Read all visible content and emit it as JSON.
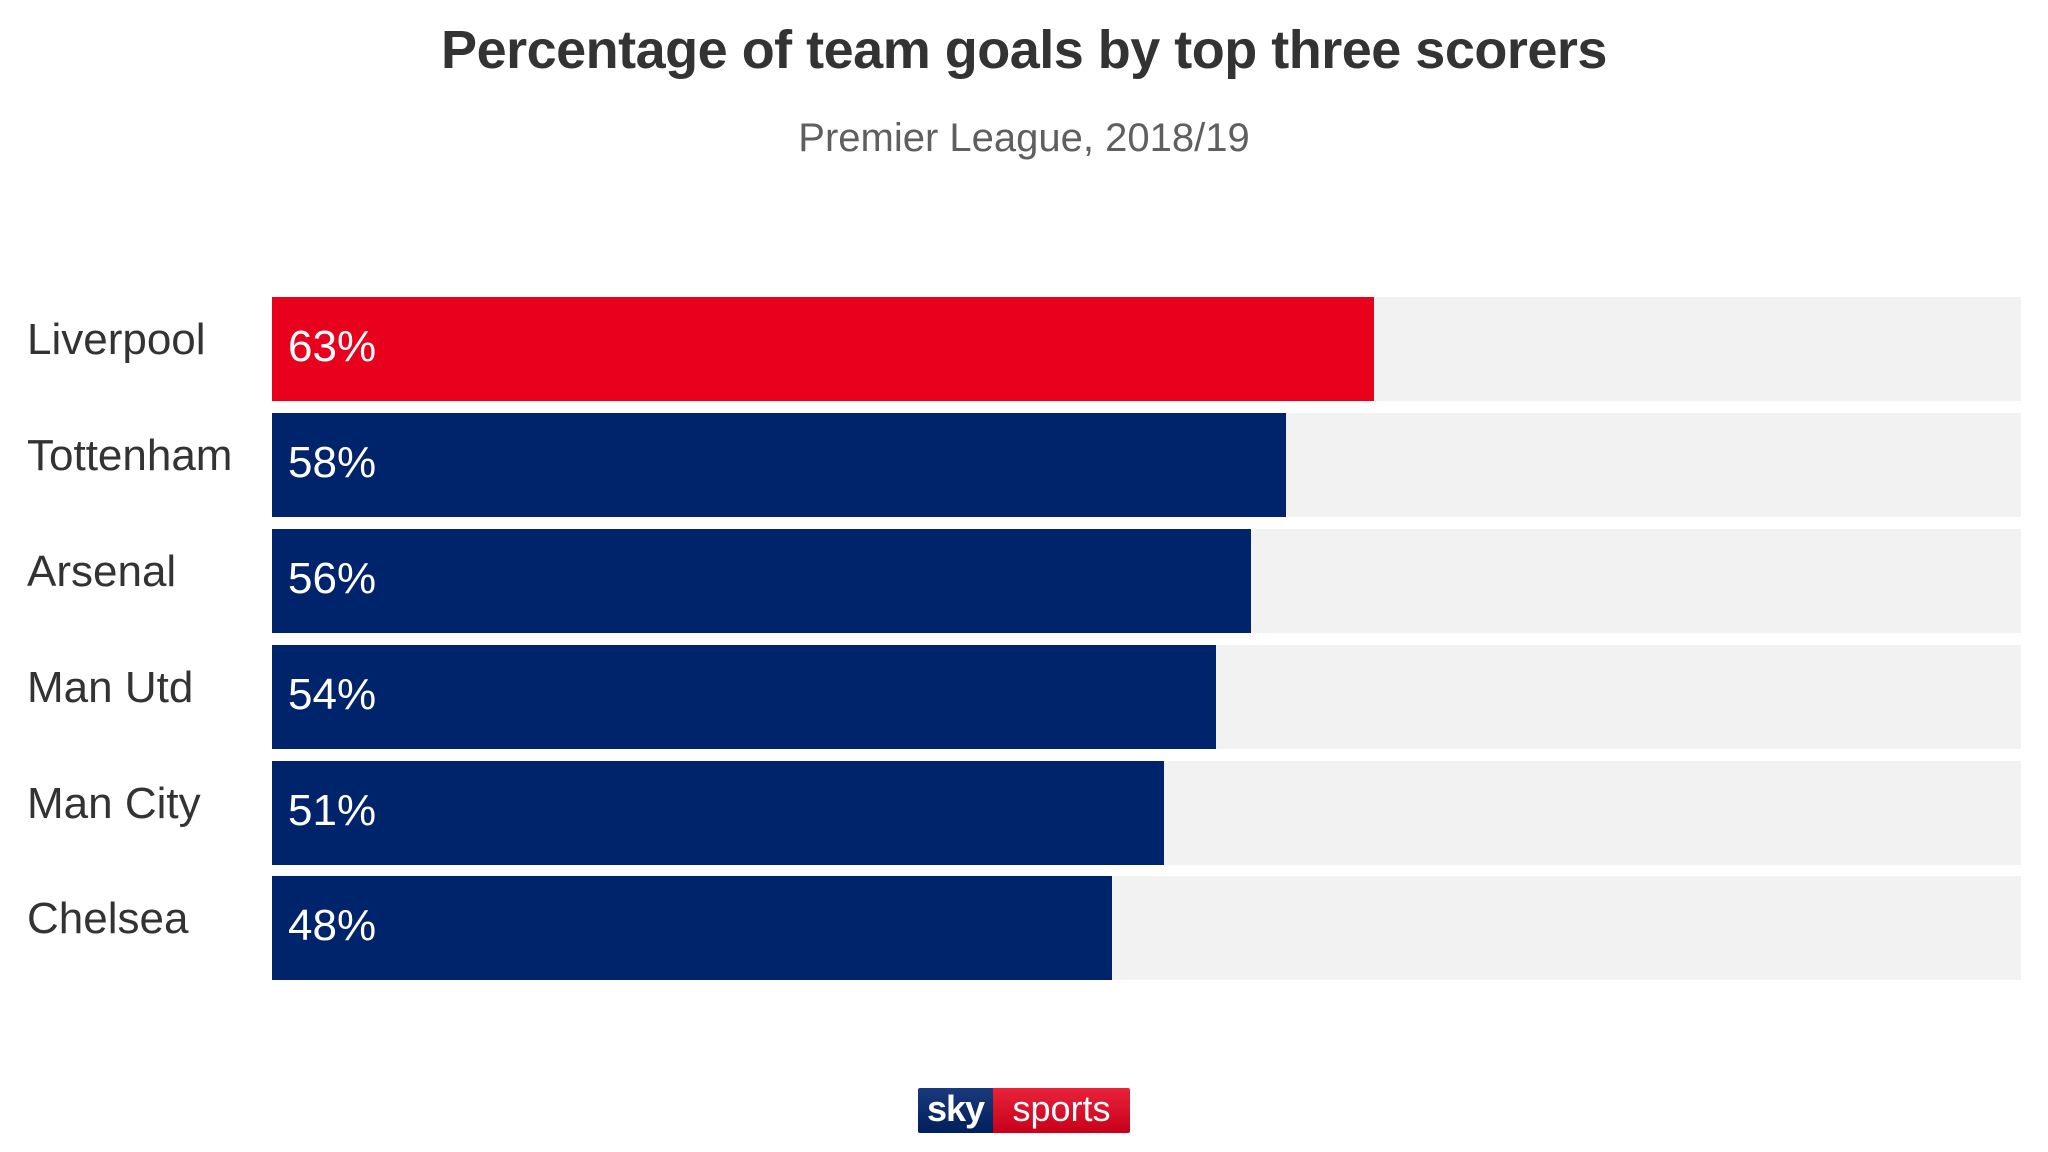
{
  "header": {
    "title": "Percentage of team goals by top three scorers",
    "subtitle": "Premier League, 2018/19"
  },
  "colors": {
    "highlight": "#e8001c",
    "bar": "#00246b",
    "track": "#f2f2f2",
    "text": "#333333",
    "subtitle": "#5f5f5f"
  },
  "rows": [
    {
      "team": "Liverpool",
      "value": 63,
      "label": "63%",
      "highlight": true
    },
    {
      "team": "Tottenham",
      "value": 58,
      "label": "58%",
      "highlight": false
    },
    {
      "team": "Arsenal",
      "value": 56,
      "label": "56%",
      "highlight": false
    },
    {
      "team": "Man Utd",
      "value": 54,
      "label": "54%",
      "highlight": false
    },
    {
      "team": "Man City",
      "value": 51,
      "label": "51%",
      "highlight": false
    },
    {
      "team": "Chelsea",
      "value": 48,
      "label": "48%",
      "highlight": false
    }
  ],
  "logo": {
    "part1": "sky",
    "part2": "sports"
  },
  "chart_data": {
    "type": "bar",
    "orientation": "horizontal",
    "title": "Percentage of team goals by top three scorers",
    "subtitle": "Premier League, 2018/19",
    "categories": [
      "Liverpool",
      "Tottenham",
      "Arsenal",
      "Man Utd",
      "Man City",
      "Chelsea"
    ],
    "values": [
      63,
      58,
      56,
      54,
      51,
      48
    ],
    "value_labels": [
      "63%",
      "58%",
      "56%",
      "54%",
      "51%",
      "48%"
    ],
    "xlabel": "",
    "ylabel": "",
    "xlim": [
      0,
      100
    ],
    "unit": "%",
    "grid": false,
    "legend": null,
    "highlighted_category": "Liverpool",
    "colors": {
      "highlighted": "#e8001c",
      "default": "#00246b",
      "background_track": "#f2f2f2"
    },
    "source_logo": "sky sports"
  }
}
